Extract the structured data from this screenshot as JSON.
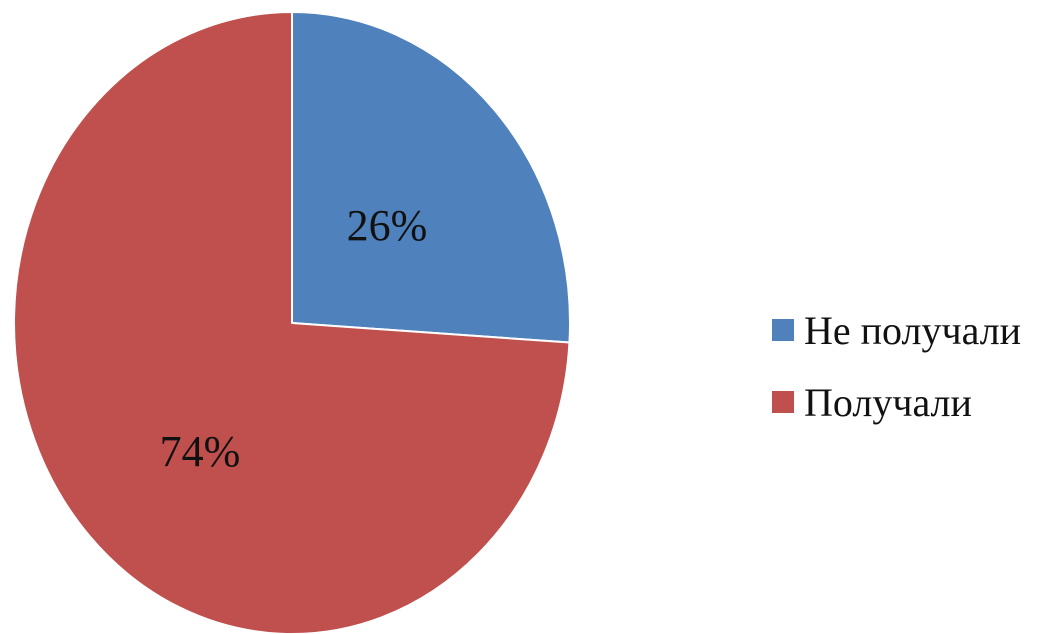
{
  "chart_data": {
    "type": "pie",
    "title": "",
    "start_angle_deg": 0,
    "direction": "clockwise",
    "slices": [
      {
        "label": "Не получали",
        "value": 26,
        "display": "26%",
        "color": "#4f81bd"
      },
      {
        "label": "Получали",
        "value": 74,
        "display": "74%",
        "color": "#c0504d"
      }
    ],
    "legend": {
      "position": "right",
      "items": [
        {
          "label": "Не получали",
          "color": "#4f81bd"
        },
        {
          "label": "Получали",
          "color": "#c0504d"
        }
      ]
    }
  }
}
